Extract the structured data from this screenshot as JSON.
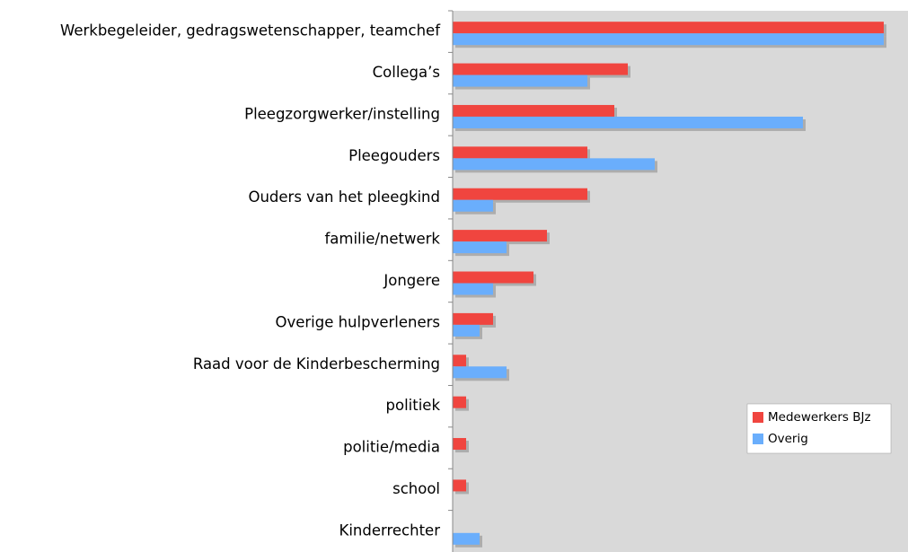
{
  "chart_data": {
    "type": "bar",
    "orientation": "horizontal",
    "categories": [
      "Werkbegeleider, gedragswetenschapper, teamchef",
      "Collega’s",
      "Pleegzorgwerker/instelling",
      "Pleegouders",
      "Ouders van het pleegkind",
      "familie/netwerk",
      "Jongere",
      "Overige hulpverleners",
      "Raad voor de Kinderbescherming",
      "politiek",
      "politie/media",
      "school",
      "Kinderrechter"
    ],
    "series": [
      {
        "name": "Medewerkers BJz",
        "color": "#f0453f",
        "values": [
          32,
          13,
          12,
          10,
          10,
          7,
          6,
          3,
          1,
          1,
          1,
          1,
          0
        ]
      },
      {
        "name": "Overig",
        "color": "#6aaefc",
        "values": [
          32,
          10,
          26,
          15,
          3,
          4,
          3,
          2,
          4,
          0,
          0,
          0,
          2
        ]
      }
    ],
    "xlim": [
      0,
      33.8
    ],
    "legend": "lower-right"
  }
}
